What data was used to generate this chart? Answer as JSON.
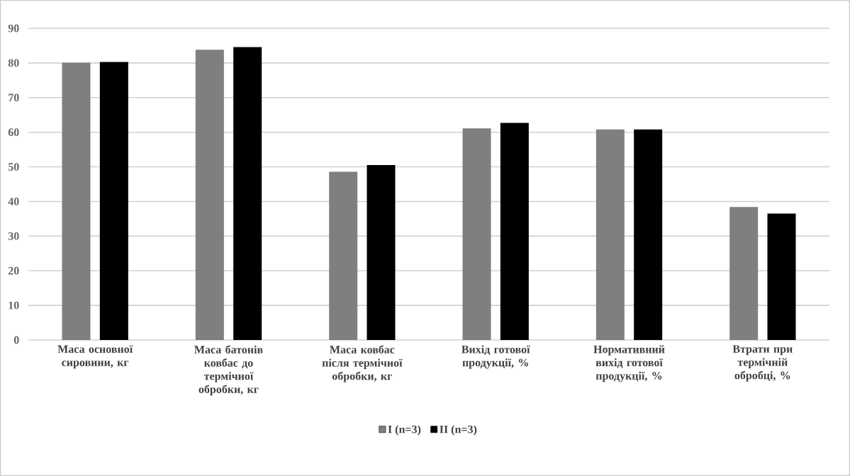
{
  "chart_data": {
    "type": "bar",
    "categories": [
      "Маса основної сировини, кг",
      "Маса батонів ковбас до термічної обробки, кг",
      "Маса ковбас після термічної обробки, кг",
      "Вихід готової продукції, %",
      "Нормативний вихід готової продукції, %",
      "Втрати при термічній обробці, %"
    ],
    "series": [
      {
        "name": "I (n=3)",
        "color": "#7f7f7f",
        "values": [
          80.1,
          83.8,
          48.6,
          61.1,
          60.8,
          38.4
        ]
      },
      {
        "name": "II (n=3)",
        "color": "#000000",
        "values": [
          80.3,
          84.6,
          50.5,
          62.7,
          60.8,
          36.5
        ]
      }
    ],
    "ylim": [
      0,
      90
    ],
    "yticks": [
      0,
      10,
      20,
      30,
      40,
      50,
      60,
      70,
      80,
      90
    ],
    "grid": "y",
    "legend": "bottom"
  }
}
